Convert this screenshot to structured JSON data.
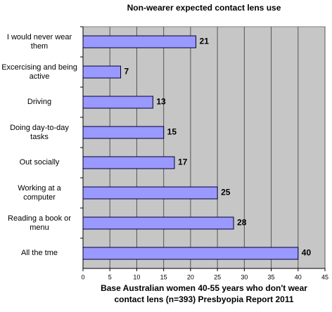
{
  "chart_data": {
    "type": "bar",
    "orientation": "horizontal",
    "title": "Non-wearer expected contact lens use",
    "xlabel": "Base Australian women 40-55 years who don't wear contact lens (n=393) Presbyopia Report 2011",
    "categories": [
      "I would never wear them",
      "Excercising and being active",
      "Driving",
      "Doing day-to-day tasks",
      "Out socially",
      "Working at a computer",
      "Reading a book or menu",
      "All the tme"
    ],
    "values": [
      21,
      7,
      13,
      15,
      17,
      25,
      28,
      40
    ],
    "color": "#9999ff",
    "xlim": [
      0,
      45
    ],
    "xticks": [
      0,
      5,
      10,
      15,
      20,
      25,
      30,
      35,
      40,
      45
    ],
    "grid": true
  }
}
